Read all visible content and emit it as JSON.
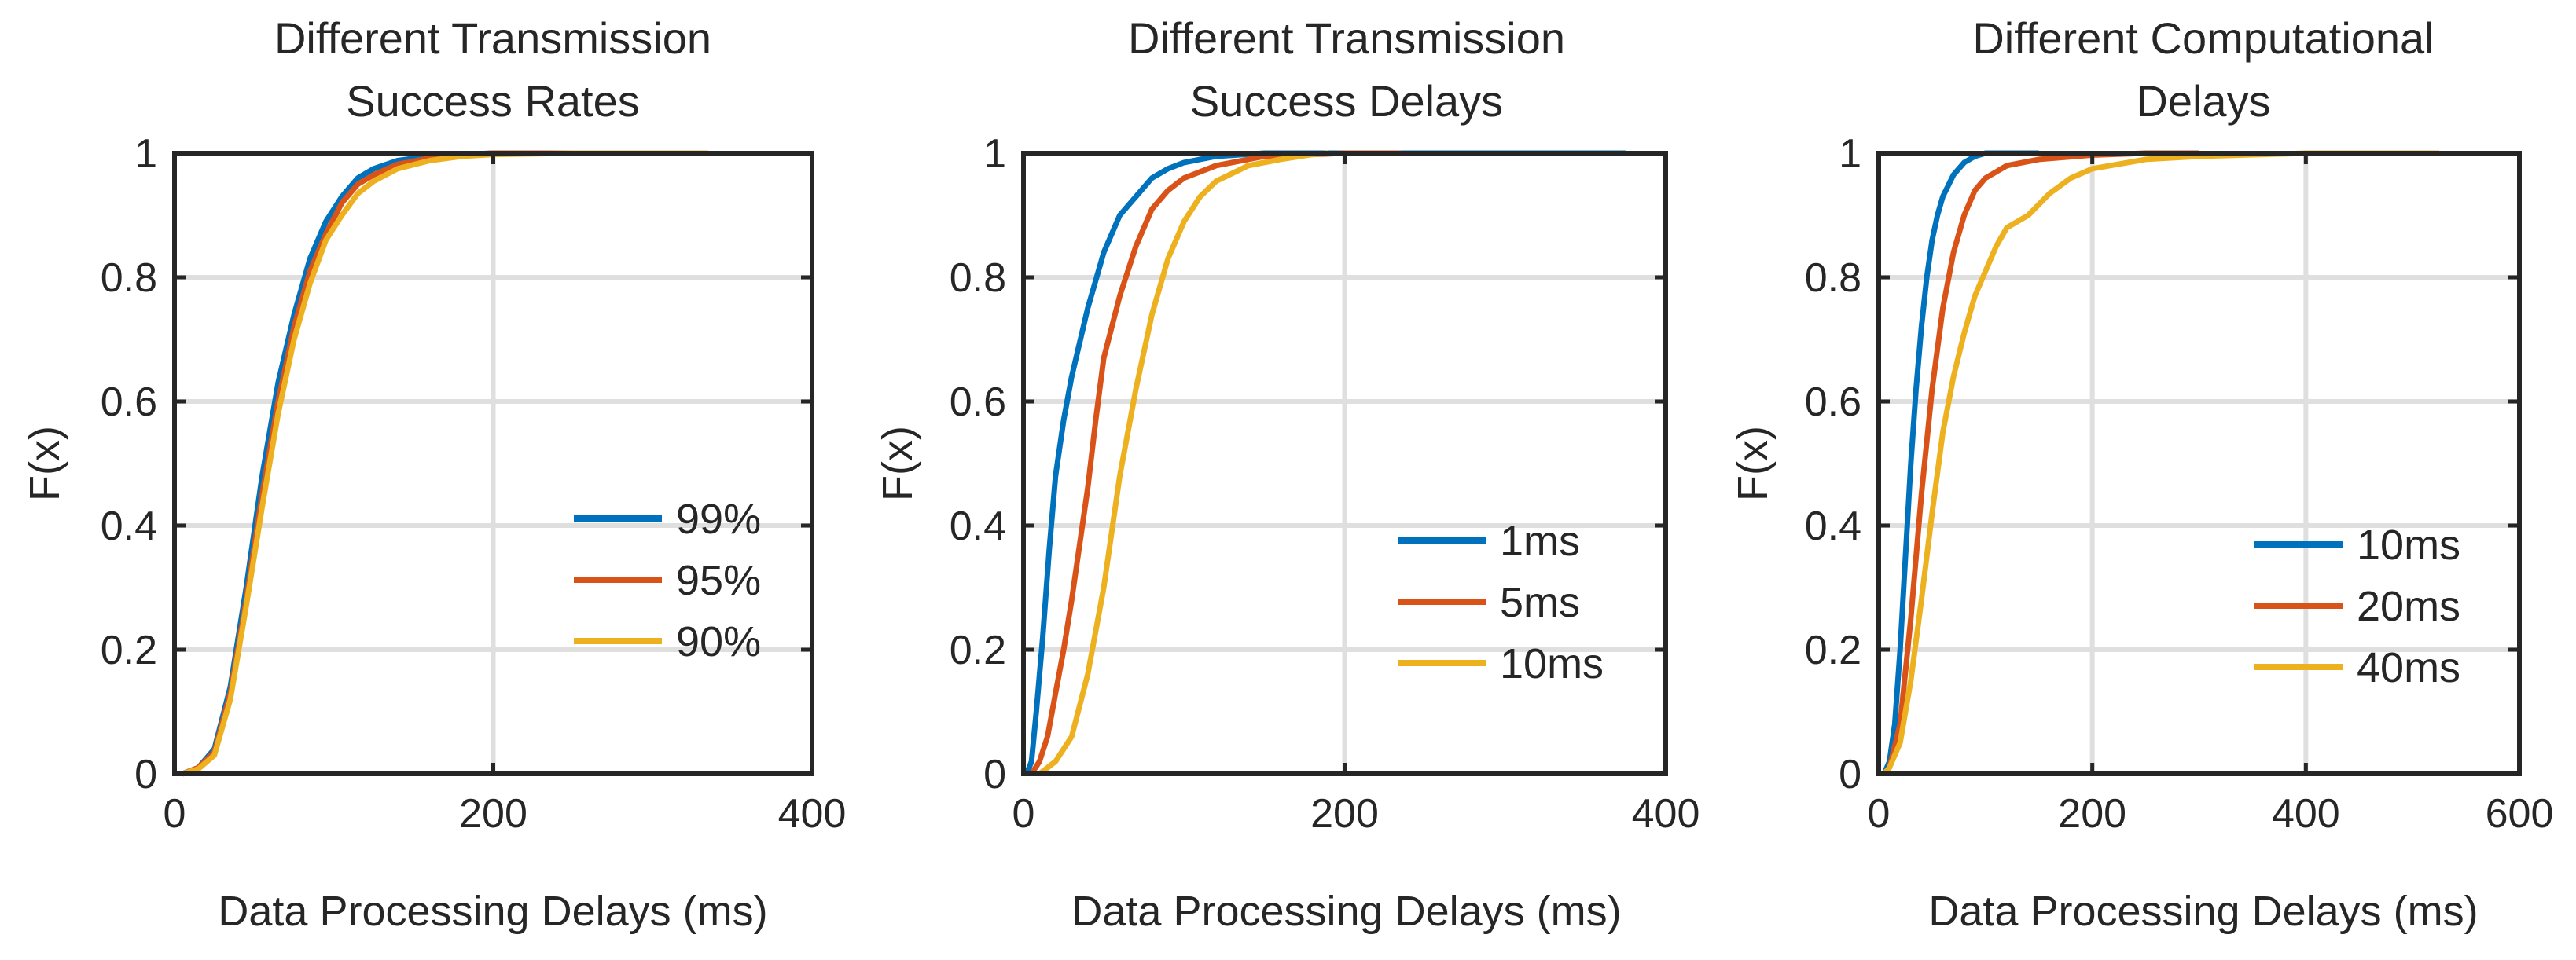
{
  "chart_data": [
    {
      "type": "line",
      "title": [
        "Different Transmission",
        "Success Rates"
      ],
      "xlabel": "Data Processing Delays (ms)",
      "ylabel": "F(x)",
      "xlim": [
        0,
        400
      ],
      "ylim": [
        0,
        1
      ],
      "xticks": [
        0,
        200,
        400
      ],
      "yticks": [
        0,
        0.2,
        0.4,
        0.6,
        0.8,
        1
      ],
      "grid": true,
      "legend_position": "lower-right",
      "series": [
        {
          "name": "99%",
          "color": "#0072BD",
          "x": [
            5,
            15,
            25,
            35,
            45,
            55,
            65,
            75,
            85,
            95,
            105,
            115,
            125,
            140,
            160,
            180,
            200,
            250,
            300,
            330
          ],
          "y": [
            0,
            0.01,
            0.04,
            0.14,
            0.3,
            0.48,
            0.63,
            0.74,
            0.83,
            0.89,
            0.93,
            0.96,
            0.975,
            0.988,
            0.995,
            0.998,
            1,
            1,
            1,
            1
          ]
        },
        {
          "name": "95%",
          "color": "#D95319",
          "x": [
            5,
            15,
            25,
            35,
            45,
            55,
            65,
            75,
            85,
            95,
            105,
            115,
            125,
            140,
            160,
            180,
            200,
            250,
            300,
            330
          ],
          "y": [
            0,
            0.01,
            0.035,
            0.13,
            0.28,
            0.45,
            0.6,
            0.72,
            0.81,
            0.87,
            0.92,
            0.95,
            0.965,
            0.982,
            0.992,
            0.997,
            1,
            1,
            1,
            1
          ]
        },
        {
          "name": "90%",
          "color": "#EDB120",
          "x": [
            5,
            15,
            25,
            35,
            45,
            55,
            65,
            75,
            85,
            95,
            105,
            115,
            125,
            140,
            160,
            180,
            200,
            250,
            300,
            335
          ],
          "y": [
            0,
            0.008,
            0.03,
            0.12,
            0.27,
            0.43,
            0.58,
            0.7,
            0.79,
            0.86,
            0.9,
            0.935,
            0.955,
            0.975,
            0.988,
            0.995,
            0.998,
            1,
            1,
            1
          ]
        }
      ]
    },
    {
      "type": "line",
      "title": [
        "Different Transmission",
        "Success Delays"
      ],
      "xlabel": "Data Processing Delays (ms)",
      "ylabel": "F(x)",
      "xlim": [
        0,
        400
      ],
      "ylim": [
        0,
        1
      ],
      "xticks": [
        0,
        200,
        400
      ],
      "yticks": [
        0,
        0.2,
        0.4,
        0.6,
        0.8,
        1
      ],
      "grid": true,
      "legend_position": "lower-right",
      "series": [
        {
          "name": "1ms",
          "color": "#0072BD",
          "x": [
            2,
            5,
            8,
            12,
            16,
            20,
            25,
            30,
            40,
            50,
            60,
            70,
            80,
            90,
            100,
            120,
            150,
            200,
            300,
            375
          ],
          "y": [
            0,
            0.02,
            0.1,
            0.22,
            0.36,
            0.48,
            0.57,
            0.64,
            0.75,
            0.84,
            0.9,
            0.93,
            0.96,
            0.975,
            0.985,
            0.995,
            1,
            1,
            1,
            1
          ]
        },
        {
          "name": "5ms",
          "color": "#D95319",
          "x": [
            5,
            10,
            15,
            20,
            25,
            30,
            35,
            40,
            45,
            50,
            60,
            70,
            80,
            90,
            100,
            120,
            150,
            200,
            235
          ],
          "y": [
            0,
            0.02,
            0.06,
            0.13,
            0.2,
            0.28,
            0.37,
            0.46,
            0.57,
            0.67,
            0.77,
            0.85,
            0.91,
            0.94,
            0.96,
            0.98,
            0.995,
            1,
            1
          ]
        },
        {
          "name": "10ms",
          "color": "#EDB120",
          "x": [
            10,
            20,
            30,
            40,
            50,
            60,
            70,
            80,
            90,
            100,
            110,
            120,
            140,
            160,
            180,
            190
          ],
          "y": [
            0,
            0.02,
            0.06,
            0.16,
            0.3,
            0.48,
            0.62,
            0.74,
            0.83,
            0.89,
            0.93,
            0.955,
            0.98,
            0.99,
            0.998,
            1
          ]
        }
      ]
    },
    {
      "type": "line",
      "title": [
        "Different Computational",
        "Delays"
      ],
      "xlabel": "Data Processing Delays (ms)",
      "ylabel": "F(x)",
      "xlim": [
        0,
        600
      ],
      "ylim": [
        0,
        1
      ],
      "xticks": [
        0,
        200,
        400,
        600
      ],
      "yticks": [
        0,
        0.2,
        0.4,
        0.6,
        0.8,
        1
      ],
      "grid": true,
      "legend_position": "lower-right",
      "series": [
        {
          "name": "10ms",
          "color": "#0072BD",
          "x": [
            5,
            10,
            15,
            20,
            25,
            30,
            35,
            40,
            45,
            50,
            55,
            60,
            70,
            80,
            90,
            100,
            120,
            150
          ],
          "y": [
            0,
            0.02,
            0.08,
            0.2,
            0.35,
            0.5,
            0.62,
            0.72,
            0.8,
            0.86,
            0.9,
            0.93,
            0.965,
            0.985,
            0.995,
            1,
            1,
            1
          ]
        },
        {
          "name": "20ms",
          "color": "#D95319",
          "x": [
            5,
            10,
            20,
            30,
            40,
            50,
            60,
            70,
            80,
            90,
            100,
            120,
            150,
            200,
            250,
            300
          ],
          "y": [
            0,
            0.01,
            0.08,
            0.25,
            0.45,
            0.62,
            0.75,
            0.84,
            0.9,
            0.94,
            0.96,
            0.98,
            0.99,
            0.997,
            1,
            1
          ]
        },
        {
          "name": "40ms",
          "color": "#EDB120",
          "x": [
            5,
            10,
            20,
            30,
            40,
            50,
            60,
            70,
            80,
            90,
            100,
            110,
            120,
            140,
            160,
            180,
            200,
            250,
            300,
            400,
            525
          ],
          "y": [
            0,
            0.01,
            0.05,
            0.15,
            0.28,
            0.42,
            0.55,
            0.64,
            0.71,
            0.77,
            0.81,
            0.85,
            0.88,
            0.9,
            0.935,
            0.96,
            0.975,
            0.99,
            0.995,
            1,
            1
          ]
        }
      ]
    }
  ]
}
